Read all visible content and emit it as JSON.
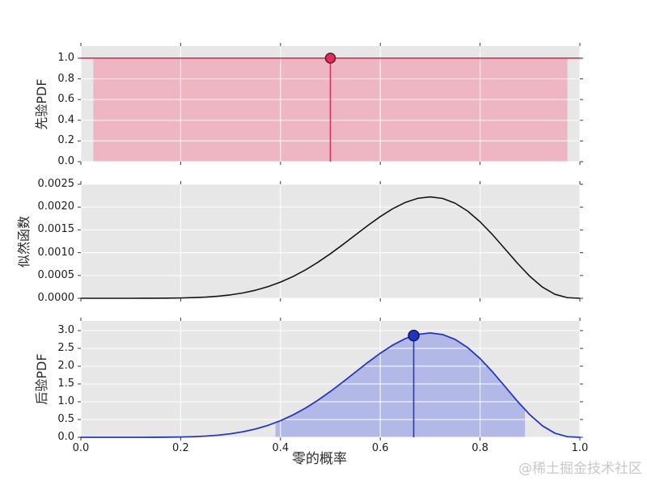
{
  "figure": {
    "bg": "#ffffff",
    "axes_bg": "#e7e7e7",
    "grid_color": "rgba(255,255,255,0.8)",
    "tick_color": "#3a3a3a",
    "tick_label_color": "#1c1c1c"
  },
  "xlabel": "零的概率",
  "watermark": "@稀土掘金技术社区",
  "x_ticks": {
    "values": [
      0,
      0.2,
      0.4,
      0.6,
      0.8,
      1.0
    ],
    "labels": [
      "0.0",
      "0.2",
      "0.4",
      "0.6",
      "0.8",
      "1.0"
    ]
  },
  "chart_data": [
    {
      "type": "area",
      "name": "prior-pdf",
      "ylabel": "先验PDF",
      "xlim": [
        0,
        1
      ],
      "ylim": [
        0,
        1.117
      ],
      "yticks": {
        "values": [
          0,
          0.2,
          0.4,
          0.6,
          0.8,
          1.0
        ],
        "labels": [
          "0.0",
          "0.2",
          "0.4",
          "0.6",
          "0.8",
          "1.0"
        ]
      },
      "line": {
        "x": [
          0,
          1
        ],
        "y": [
          1,
          1
        ],
        "color": "#d23558",
        "width": 1.6
      },
      "fill": {
        "x0": 0.025,
        "x1": 0.975,
        "y_const": 1,
        "color": "#eeb5c3"
      },
      "vline": {
        "x": 0.5,
        "y0": 0,
        "y1": 1,
        "color": "#d23558"
      },
      "marker": {
        "x": 0.5,
        "y": 1,
        "color": "#e0315c",
        "edge": "#73172f",
        "radius": 6
      }
    },
    {
      "type": "line",
      "name": "likelihood",
      "ylabel": "似然函数",
      "xlim": [
        0,
        1
      ],
      "ylim": [
        0,
        0.0025
      ],
      "yticks": {
        "values": [
          0,
          0.0005,
          0.001,
          0.0015,
          0.002,
          0.0025
        ],
        "labels": [
          "0.0000",
          "0.0005",
          "0.0010",
          "0.0015",
          "0.0020",
          "0.0025"
        ]
      },
      "line": {
        "x": [
          0,
          0.025,
          0.05,
          0.075,
          0.1,
          0.125,
          0.15,
          0.175,
          0.2,
          0.225,
          0.25,
          0.275,
          0.3,
          0.325,
          0.35,
          0.375,
          0.4,
          0.425,
          0.45,
          0.475,
          0.5,
          0.525,
          0.55,
          0.575,
          0.6,
          0.625,
          0.65,
          0.675,
          0.7,
          0.725,
          0.75,
          0.775,
          0.8,
          0.825,
          0.85,
          0.875,
          0.9,
          0.925,
          0.95,
          0.975,
          1
        ],
        "y": [
          0,
          5.7e-12,
          6.7e-10,
          1.06e-08,
          7.29e-08,
          3.19e-07,
          1.05e-06,
          2.82e-06,
          6.55e-06,
          1.36e-05,
          2.58e-05,
          4.53e-05,
          7.5e-05,
          0.0001178,
          0.0001767,
          0.0002546,
          0.0003539,
          0.0004761,
          0.0006217,
          0.0007895,
          0.0009766,
          0.0011781,
          0.0013873,
          0.0015953,
          0.0017916,
          0.0019645,
          0.0021018,
          0.0021918,
          0.0022236,
          0.0021896,
          0.0020857,
          0.0019128,
          0.0016777,
          0.0013942,
          0.0010819,
          0.000767,
          0.0004783,
          0.0002444,
          8.73e-05,
          1.31e-05,
          0
        ],
        "color": "#151515",
        "width": 1.6
      }
    },
    {
      "type": "area",
      "name": "posterior-pdf",
      "ylabel": "后验PDF",
      "xlim": [
        0,
        1
      ],
      "ylim": [
        0,
        3.273
      ],
      "yticks": {
        "values": [
          0,
          0.5,
          1.0,
          1.5,
          2.0,
          2.5,
          3.0
        ],
        "labels": [
          "0.0",
          "0.5",
          "1.0",
          "1.5",
          "2.0",
          "2.5",
          "3.0"
        ]
      },
      "line": {
        "x": [
          0,
          0.025,
          0.05,
          0.075,
          0.1,
          0.125,
          0.15,
          0.175,
          0.2,
          0.225,
          0.25,
          0.275,
          0.3,
          0.325,
          0.35,
          0.375,
          0.4,
          0.425,
          0.45,
          0.475,
          0.5,
          0.525,
          0.55,
          0.575,
          0.6,
          0.625,
          0.65,
          0.675,
          0.7,
          0.725,
          0.75,
          0.775,
          0.8,
          0.825,
          0.85,
          0.875,
          0.9,
          0.925,
          0.95,
          0.975,
          1
        ],
        "y": [
          0,
          0,
          0,
          1.39e-05,
          9.62e-05,
          0.000422,
          0.00139,
          0.00372,
          0.00865,
          0.0179,
          0.034,
          0.0598,
          0.099,
          0.1555,
          0.2332,
          0.3361,
          0.4672,
          0.6285,
          0.8206,
          1.0421,
          1.2891,
          1.5551,
          1.8312,
          2.1058,
          2.3649,
          2.5931,
          2.7744,
          2.8931,
          2.9352,
          2.8903,
          2.7532,
          2.5249,
          2.2146,
          1.8403,
          1.4282,
          1.0124,
          0.6314,
          0.3227,
          0.1152,
          0.0173,
          0
        ],
        "color": "#2438c0",
        "width": 1.8
      },
      "fill": {
        "x0": 0.39,
        "x1": 0.89,
        "from_line": true,
        "color": "#b2b9e6"
      },
      "vline": {
        "x": 0.667,
        "y0": 0,
        "y1": 2.861,
        "color": "#2438c0"
      },
      "marker": {
        "x": 0.667,
        "y": 2.861,
        "color": "#2433bb",
        "edge": "#0e1a70",
        "radius": 6.5
      }
    }
  ]
}
